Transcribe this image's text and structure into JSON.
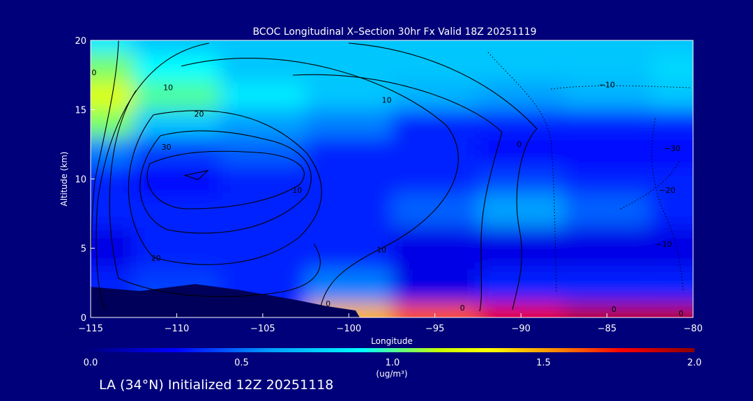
{
  "chart_data": {
    "type": "heatmap",
    "title": "BCOC Longitudinal X–Section 30hr  Fx Valid 18Z 20251119",
    "xlabel": "Longitude",
    "ylabel": "Altitude (km)",
    "xlim": [
      -115,
      -80
    ],
    "ylim": [
      0,
      20
    ],
    "x_ticks": [
      -115,
      -110,
      -105,
      -100,
      -95,
      -90,
      -85,
      -80
    ],
    "x_tick_labels": [
      "−115",
      "−110",
      "−105",
      "−100",
      "−95",
      "−90",
      "−85",
      "−80"
    ],
    "y_ticks": [
      0,
      5,
      10,
      15,
      20
    ],
    "y_tick_labels": [
      "0",
      "5",
      "10",
      "15",
      "20"
    ],
    "grid": false,
    "colorbar": {
      "min": 0.0,
      "max": 2.0,
      "ticks": [
        0.0,
        0.5,
        1.0,
        1.5,
        2.0
      ],
      "tick_labels": [
        "0.0",
        "0.5",
        "1.0",
        "1.5",
        "2.0"
      ],
      "units": "(ug/m³)",
      "placement": "bottom"
    },
    "colormap": [
      "#000080",
      "#0000ff",
      "#00a0ff",
      "#00ffff",
      "#c8ff00",
      "#ffff00",
      "#ff8000",
      "#ff0000",
      "#8b0000"
    ],
    "field": {
      "x": [
        -115,
        -110,
        -105,
        -100,
        -95,
        -90,
        -85,
        -80
      ],
      "y": [
        0,
        2,
        5,
        8,
        10,
        12,
        14,
        16,
        18,
        20
      ],
      "values": [
        [
          0.2,
          0.4,
          0.3,
          1.4,
          1.6,
          1.8,
          1.9,
          1.9
        ],
        [
          0.3,
          0.35,
          0.3,
          0.45,
          0.2,
          0.3,
          0.3,
          0.3
        ],
        [
          0.2,
          0.3,
          0.3,
          0.3,
          0.2,
          0.2,
          0.2,
          0.2
        ],
        [
          0.3,
          0.3,
          0.3,
          0.3,
          0.4,
          0.5,
          0.4,
          0.3
        ],
        [
          0.3,
          0.25,
          0.3,
          0.3,
          0.3,
          0.35,
          0.3,
          0.3
        ],
        [
          0.45,
          0.35,
          0.4,
          0.3,
          0.3,
          0.25,
          0.25,
          0.25
        ],
        [
          0.9,
          0.6,
          0.5,
          0.45,
          0.3,
          0.3,
          0.3,
          0.3
        ],
        [
          1.1,
          0.85,
          0.7,
          0.6,
          0.55,
          0.5,
          0.55,
          0.6
        ],
        [
          0.9,
          0.75,
          0.6,
          0.6,
          0.6,
          0.6,
          0.6,
          0.65
        ],
        [
          0.7,
          0.6,
          0.6,
          0.6,
          0.6,
          0.6,
          0.6,
          0.6
        ]
      ]
    },
    "contour_labels": [
      {
        "text": "0",
        "x": -114.8,
        "y": 17.5
      },
      {
        "text": "10",
        "x": -110.5,
        "y": 16.4
      },
      {
        "text": "20",
        "x": -108.7,
        "y": 14.5
      },
      {
        "text": "30",
        "x": -110.6,
        "y": 12.1
      },
      {
        "text": "10",
        "x": -97.8,
        "y": 15.5
      },
      {
        "text": "0",
        "x": -90.1,
        "y": 12.3
      },
      {
        "text": "−10",
        "x": -85.0,
        "y": 16.6
      },
      {
        "text": "−30",
        "x": -81.2,
        "y": 12.0
      },
      {
        "text": "−20",
        "x": -81.5,
        "y": 9.0
      },
      {
        "text": "−10",
        "x": -81.7,
        "y": 5.1
      },
      {
        "text": "0",
        "x": -84.6,
        "y": 0.4
      },
      {
        "text": "0",
        "x": -80.7,
        "y": 0.1
      },
      {
        "text": "20",
        "x": -111.2,
        "y": 4.1
      },
      {
        "text": "10",
        "x": -98.1,
        "y": 4.7
      },
      {
        "text": "0",
        "x": -101.2,
        "y": 0.8
      },
      {
        "text": "0",
        "x": -93.4,
        "y": 0.5
      },
      {
        "text": "10",
        "x": -103.0,
        "y": 9.0
      }
    ]
  },
  "footer": "LA (34°N) Initialized 12Z 20251118"
}
